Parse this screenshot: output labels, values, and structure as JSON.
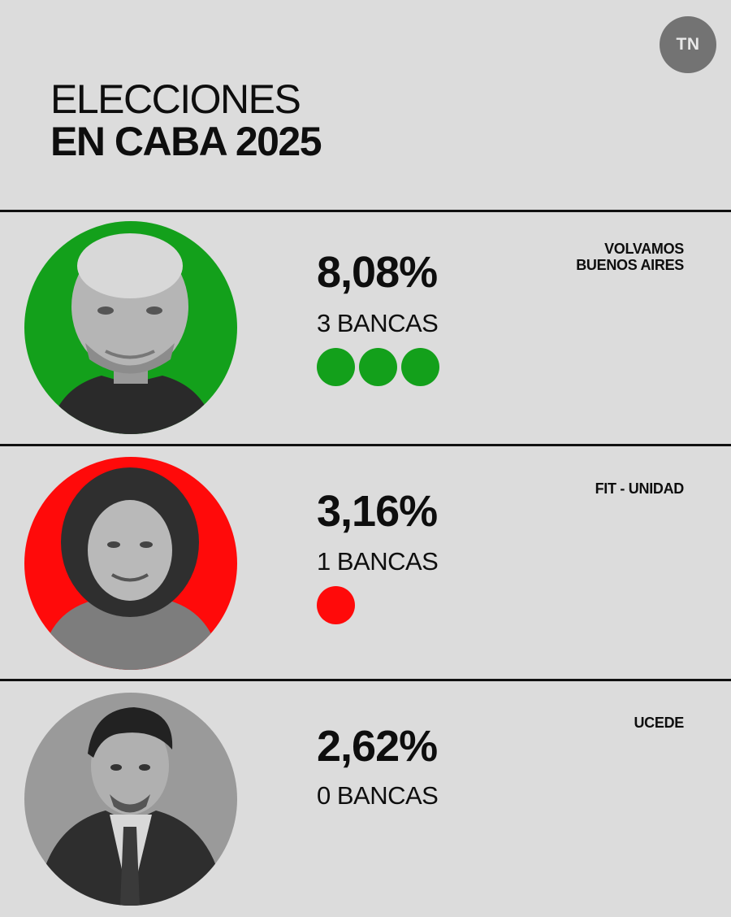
{
  "brand": {
    "logo_text": "TN"
  },
  "title": {
    "line1": "ELECCIONES",
    "line2": "EN CABA 2025"
  },
  "results": [
    {
      "party_lines": [
        "VOLVAMOS",
        "BUENOS AIRES"
      ],
      "percentage": "8,08%",
      "seats_label": "3 BANCAS",
      "seats": 3,
      "color": "#13a01b"
    },
    {
      "party_lines": [
        "FIT - UNIDAD"
      ],
      "percentage": "3,16%",
      "seats_label": "1 BANCAS",
      "seats": 1,
      "color": "#ff0a0a"
    },
    {
      "party_lines": [
        "UCEDE"
      ],
      "percentage": "2,62%",
      "seats_label": "0 BANCAS",
      "seats": 0,
      "color": "#9a9a9a"
    }
  ]
}
